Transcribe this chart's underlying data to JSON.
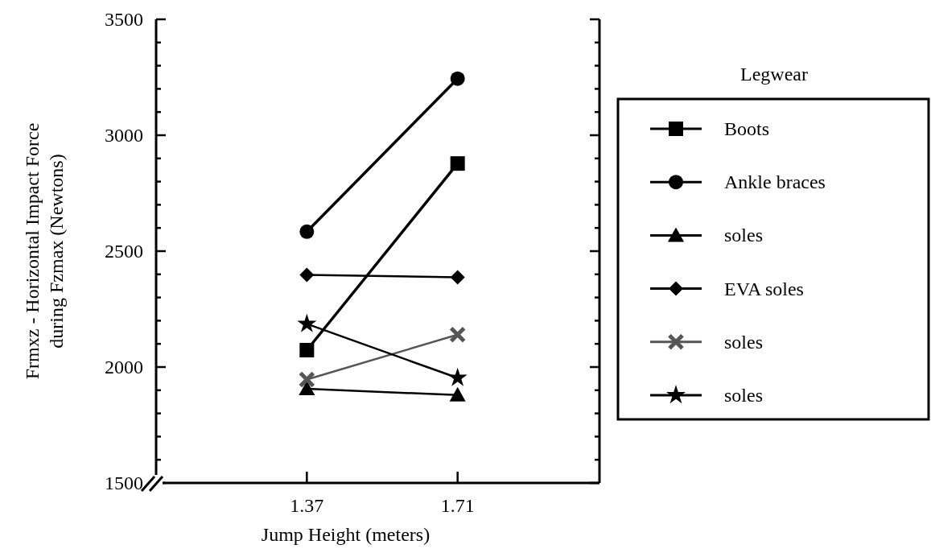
{
  "chart_data": {
    "type": "line",
    "xlabel": "Jump Height (meters)",
    "ylabel": "Frmxz - Horizontal Impact Force\nduring Fzmax (Newtons)",
    "legend_title": "Legwear",
    "legend": "right",
    "x": [
      1.37,
      1.71
    ],
    "xlim": [
      1.03,
      2.03
    ],
    "xticks": [
      1.37,
      1.71
    ],
    "ylim": [
      1500,
      3500
    ],
    "yticks": [
      1500,
      {
        "value": 1600,
        "label": null
      },
      {
        "value": 1700,
        "label": null
      },
      {
        "value": 1800,
        "label": null
      },
      {
        "value": 1900,
        "label": null
      },
      2000,
      {
        "value": 2100,
        "label": null
      },
      {
        "value": 2200,
        "label": null
      },
      {
        "value": 2300,
        "label": null
      },
      {
        "value": 2400,
        "label": null
      },
      2500,
      {
        "value": 2600,
        "label": null
      },
      {
        "value": 2700,
        "label": null
      },
      {
        "value": 2800,
        "label": null
      },
      {
        "value": 2900,
        "label": null
      },
      3000,
      {
        "value": 3100,
        "label": null
      },
      {
        "value": 3200,
        "label": null
      },
      {
        "value": 3300,
        "label": null
      },
      {
        "value": 3400,
        "label": null
      },
      3500
    ],
    "grid": false,
    "line_style": "solid",
    "series": [
      {
        "name": "Boots",
        "color": "#000000",
        "marker": "square",
        "values": [
          2073,
          2878
        ]
      },
      {
        "name": "Ankle braces",
        "color": "#000000",
        "marker": "circle",
        "values": [
          2584,
          3244
        ]
      },
      {
        "name": "soles",
        "color": "#000000",
        "marker": "triangle",
        "values": [
          1906,
          1879
        ]
      },
      {
        "name": "EVA soles",
        "color": "#000000",
        "marker": "diamond",
        "values": [
          2398,
          2387
        ]
      },
      {
        "name": "soles",
        "color": "#555555",
        "marker": "cross",
        "values": [
          1946,
          2140
        ]
      },
      {
        "name": "soles",
        "color": "#000000",
        "marker": "star",
        "values": [
          2186,
          1953
        ]
      }
    ]
  }
}
